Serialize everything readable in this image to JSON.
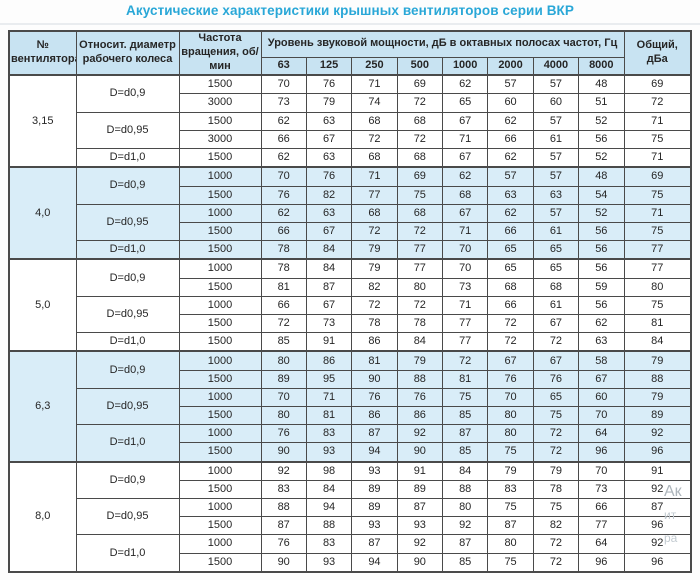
{
  "title": "Акустические характеристики крышных вентиляторов серии ВКР",
  "colors": {
    "title": "#29a7d7",
    "header_bg": "#c8e3f2",
    "highlight_section_bg": "#d9edf8",
    "border": "#4a4a4a",
    "text": "#262626"
  },
  "table": {
    "headers": {
      "fan_number": "№ вентилятора",
      "rel_diameter": "Относит. диаметр рабочего колеса",
      "rotation_freq": "Частота вращения, об/мин",
      "sound_power": "Уровень звуковой мощности, дБ в октавных полосах частот, Гц",
      "total": "Общий, дБа",
      "frequencies": [
        "63",
        "125",
        "250",
        "500",
        "1000",
        "2000",
        "4000",
        "8000"
      ]
    },
    "sections": [
      {
        "fan": "3,15",
        "highlight": false,
        "groups": [
          {
            "diameter": "D=d0,9",
            "rows": [
              {
                "rpm": "1500",
                "levels": [
                  70,
                  76,
                  71,
                  69,
                  62,
                  57,
                  57,
                  48
                ],
                "total": 69
              },
              {
                "rpm": "3000",
                "levels": [
                  73,
                  79,
                  74,
                  72,
                  65,
                  60,
                  60,
                  51
                ],
                "total": 72
              }
            ]
          },
          {
            "diameter": "D=d0,95",
            "rows": [
              {
                "rpm": "1500",
                "levels": [
                  62,
                  63,
                  68,
                  68,
                  67,
                  62,
                  57,
                  52
                ],
                "total": 71
              },
              {
                "rpm": "3000",
                "levels": [
                  66,
                  67,
                  72,
                  72,
                  71,
                  66,
                  61,
                  56
                ],
                "total": 75
              }
            ]
          },
          {
            "diameter": "D=d1,0",
            "rows": [
              {
                "rpm": "1500",
                "levels": [
                  62,
                  63,
                  68,
                  68,
                  67,
                  62,
                  57,
                  52
                ],
                "total": 71
              }
            ]
          }
        ]
      },
      {
        "fan": "4,0",
        "highlight": true,
        "groups": [
          {
            "diameter": "D=d0,9",
            "rows": [
              {
                "rpm": "1000",
                "levels": [
                  70,
                  76,
                  71,
                  69,
                  62,
                  57,
                  57,
                  48
                ],
                "total": 69
              },
              {
                "rpm": "1500",
                "levels": [
                  76,
                  82,
                  77,
                  75,
                  68,
                  63,
                  63,
                  54
                ],
                "total": 75
              }
            ]
          },
          {
            "diameter": "D=d0,95",
            "rows": [
              {
                "rpm": "1000",
                "levels": [
                  62,
                  63,
                  68,
                  68,
                  67,
                  62,
                  57,
                  52
                ],
                "total": 71
              },
              {
                "rpm": "1500",
                "levels": [
                  66,
                  67,
                  72,
                  72,
                  71,
                  66,
                  61,
                  56
                ],
                "total": 75
              }
            ]
          },
          {
            "diameter": "D=d1,0",
            "rows": [
              {
                "rpm": "1500",
                "levels": [
                  78,
                  84,
                  79,
                  77,
                  70,
                  65,
                  65,
                  56
                ],
                "total": 77
              }
            ]
          }
        ]
      },
      {
        "fan": "5,0",
        "highlight": false,
        "groups": [
          {
            "diameter": "D=d0,9",
            "rows": [
              {
                "rpm": "1000",
                "levels": [
                  78,
                  84,
                  79,
                  77,
                  70,
                  65,
                  65,
                  56
                ],
                "total": 77
              },
              {
                "rpm": "1500",
                "levels": [
                  81,
                  87,
                  82,
                  80,
                  73,
                  68,
                  68,
                  59
                ],
                "total": 80
              }
            ]
          },
          {
            "diameter": "D=d0,95",
            "rows": [
              {
                "rpm": "1000",
                "levels": [
                  66,
                  67,
                  72,
                  72,
                  71,
                  66,
                  61,
                  56
                ],
                "total": 75
              },
              {
                "rpm": "1500",
                "levels": [
                  72,
                  73,
                  78,
                  78,
                  77,
                  72,
                  67,
                  62
                ],
                "total": 81
              }
            ]
          },
          {
            "diameter": "D=d1,0",
            "rows": [
              {
                "rpm": "1500",
                "levels": [
                  85,
                  91,
                  86,
                  84,
                  77,
                  72,
                  72,
                  63
                ],
                "total": 84
              }
            ]
          }
        ]
      },
      {
        "fan": "6,3",
        "highlight": true,
        "groups": [
          {
            "diameter": "D=d0,9",
            "rows": [
              {
                "rpm": "1000",
                "levels": [
                  80,
                  86,
                  81,
                  79,
                  72,
                  67,
                  67,
                  58
                ],
                "total": 79
              },
              {
                "rpm": "1500",
                "levels": [
                  89,
                  95,
                  90,
                  88,
                  81,
                  76,
                  76,
                  67
                ],
                "total": 88
              }
            ]
          },
          {
            "diameter": "D=d0,95",
            "rows": [
              {
                "rpm": "1000",
                "levels": [
                  70,
                  71,
                  76,
                  76,
                  75,
                  70,
                  65,
                  60
                ],
                "total": 79
              },
              {
                "rpm": "1500",
                "levels": [
                  80,
                  81,
                  86,
                  86,
                  85,
                  80,
                  75,
                  70
                ],
                "total": 89
              }
            ]
          },
          {
            "diameter": "D=d1,0",
            "rows": [
              {
                "rpm": "1000",
                "levels": [
                  76,
                  83,
                  87,
                  92,
                  87,
                  80,
                  72,
                  64
                ],
                "total": 92
              },
              {
                "rpm": "1500",
                "levels": [
                  90,
                  93,
                  94,
                  90,
                  85,
                  75,
                  72,
                  96
                ],
                "total": 96
              }
            ]
          }
        ]
      },
      {
        "fan": "8,0",
        "highlight": false,
        "groups": [
          {
            "diameter": "D=d0,9",
            "rows": [
              {
                "rpm": "1000",
                "levels": [
                  92,
                  98,
                  93,
                  91,
                  84,
                  79,
                  79,
                  70
                ],
                "total": 91
              },
              {
                "rpm": "1500",
                "levels": [
                  83,
                  84,
                  89,
                  89,
                  88,
                  83,
                  78,
                  73
                ],
                "total": 92
              }
            ]
          },
          {
            "diameter": "D=d0,95",
            "rows": [
              {
                "rpm": "1000",
                "levels": [
                  88,
                  94,
                  89,
                  87,
                  80,
                  75,
                  75,
                  66
                ],
                "total": 87
              },
              {
                "rpm": "1500",
                "levels": [
                  87,
                  88,
                  93,
                  93,
                  92,
                  87,
                  82,
                  77
                ],
                "total": 96
              }
            ]
          },
          {
            "diameter": "D=d1,0",
            "rows": [
              {
                "rpm": "1000",
                "levels": [
                  76,
                  83,
                  87,
                  92,
                  87,
                  80,
                  72,
                  64
                ],
                "total": 92
              },
              {
                "rpm": "1500",
                "levels": [
                  90,
                  93,
                  94,
                  90,
                  85,
                  75,
                  72,
                  96
                ],
                "total": 96
              }
            ]
          }
        ]
      }
    ]
  },
  "watermark": {
    "fragments": [
      "Ак",
      "ит",
      "ра"
    ]
  }
}
